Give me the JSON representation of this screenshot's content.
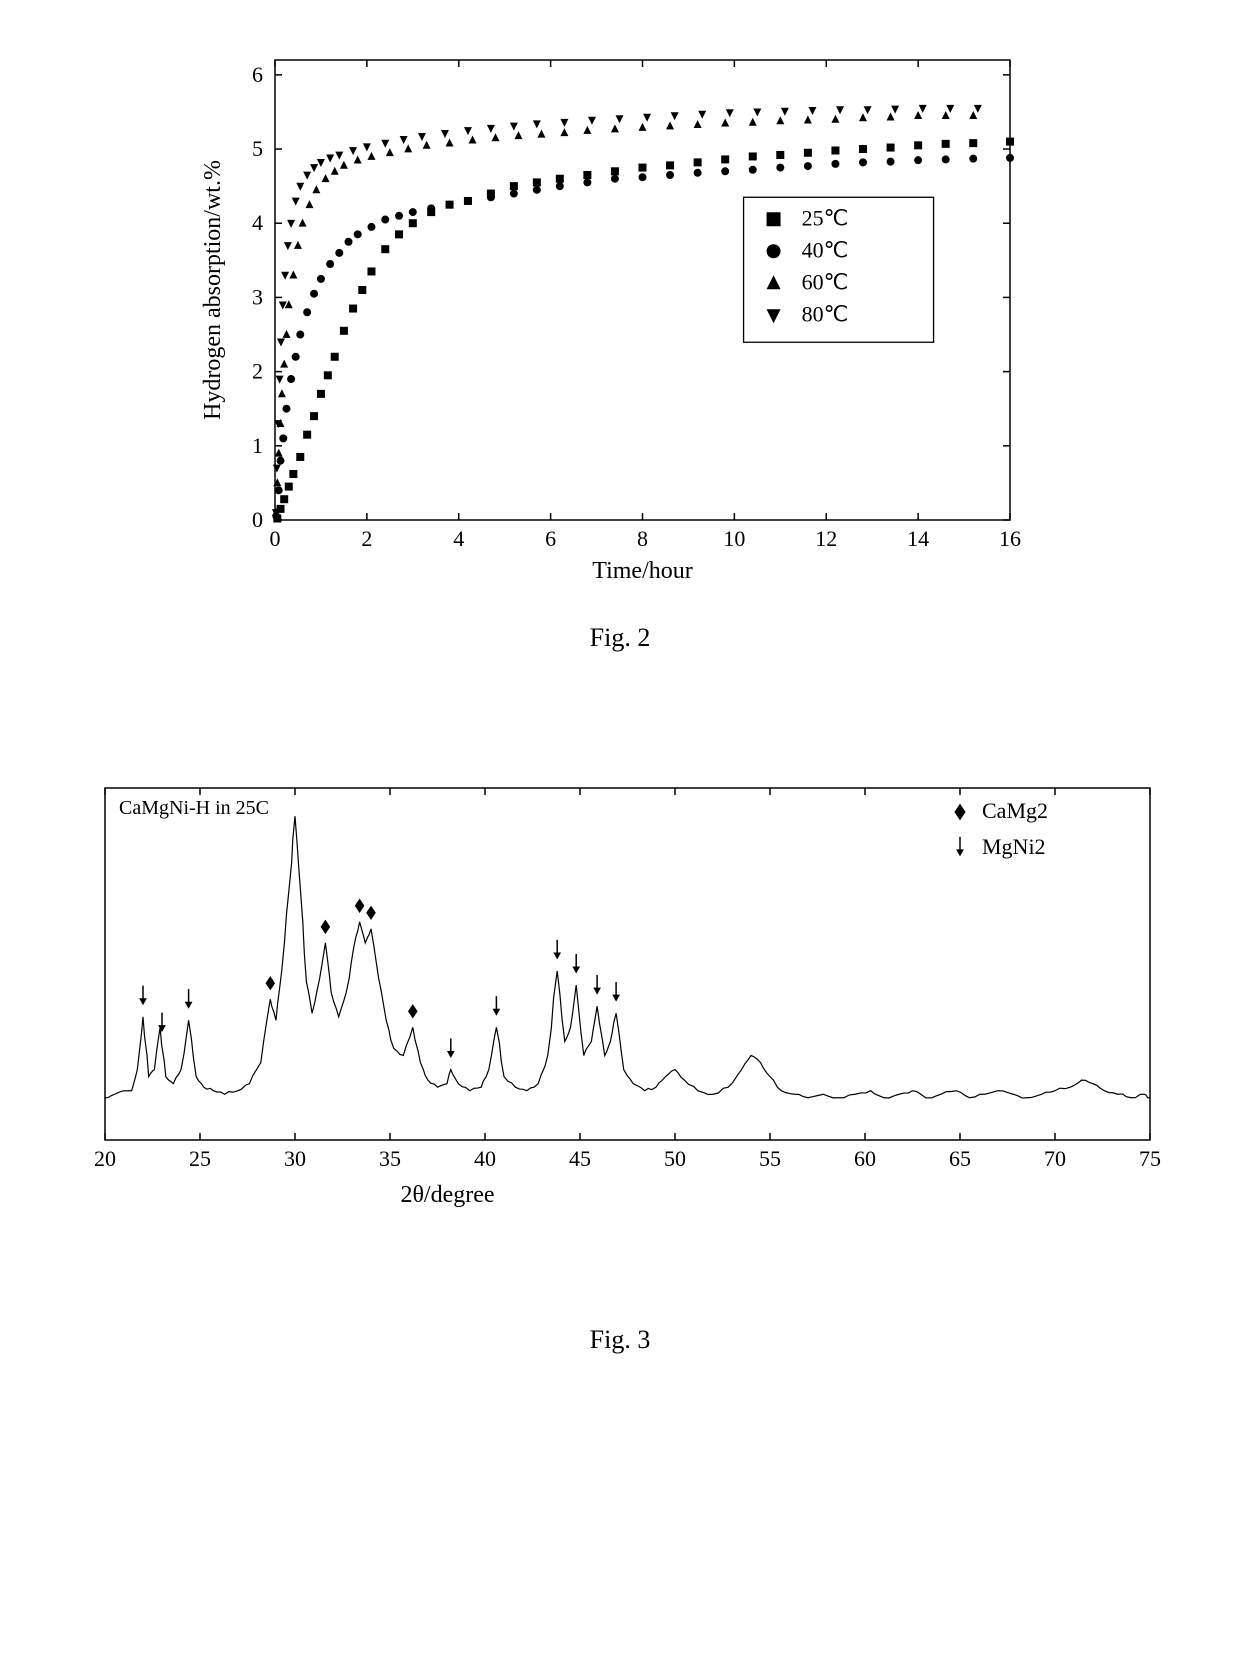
{
  "fig2": {
    "caption": "Fig. 2",
    "xlabel": "Time/hour",
    "ylabel": "Hydrogen absorption/wt.%",
    "xlim": [
      0,
      16
    ],
    "ylim": [
      0,
      6.2
    ],
    "xticks": [
      0,
      2,
      4,
      6,
      8,
      10,
      12,
      14,
      16
    ],
    "yticks": [
      0,
      1,
      2,
      3,
      4,
      5,
      6
    ],
    "line_color": "#000000",
    "background_color": "#ffffff",
    "axis_color": "#000000",
    "border_width": 1.5,
    "marker_size": 8,
    "tick_fontsize": 22,
    "label_fontsize": 24,
    "legend": {
      "border_color": "#000000",
      "bg_color": "#ffffff",
      "items": [
        {
          "marker": "square",
          "label": "25℃"
        },
        {
          "marker": "circle",
          "label": "40℃"
        },
        {
          "marker": "triangle-up",
          "label": "60℃"
        },
        {
          "marker": "triangle-down",
          "label": "80℃"
        }
      ]
    },
    "series": [
      {
        "name": "25C",
        "marker": "square",
        "points": [
          [
            0.05,
            0.02
          ],
          [
            0.12,
            0.15
          ],
          [
            0.2,
            0.28
          ],
          [
            0.3,
            0.45
          ],
          [
            0.4,
            0.62
          ],
          [
            0.55,
            0.85
          ],
          [
            0.7,
            1.15
          ],
          [
            0.85,
            1.4
          ],
          [
            1.0,
            1.7
          ],
          [
            1.15,
            1.95
          ],
          [
            1.3,
            2.2
          ],
          [
            1.5,
            2.55
          ],
          [
            1.7,
            2.85
          ],
          [
            1.9,
            3.1
          ],
          [
            2.1,
            3.35
          ],
          [
            2.4,
            3.65
          ],
          [
            2.7,
            3.85
          ],
          [
            3.0,
            4.0
          ],
          [
            3.4,
            4.15
          ],
          [
            3.8,
            4.25
          ],
          [
            4.2,
            4.3
          ],
          [
            4.7,
            4.4
          ],
          [
            5.2,
            4.5
          ],
          [
            5.7,
            4.55
          ],
          [
            6.2,
            4.6
          ],
          [
            6.8,
            4.65
          ],
          [
            7.4,
            4.7
          ],
          [
            8.0,
            4.75
          ],
          [
            8.6,
            4.78
          ],
          [
            9.2,
            4.82
          ],
          [
            9.8,
            4.86
          ],
          [
            10.4,
            4.9
          ],
          [
            11.0,
            4.92
          ],
          [
            11.6,
            4.95
          ],
          [
            12.2,
            4.98
          ],
          [
            12.8,
            5.0
          ],
          [
            13.4,
            5.02
          ],
          [
            14.0,
            5.05
          ],
          [
            14.6,
            5.07
          ],
          [
            15.2,
            5.08
          ],
          [
            16.0,
            5.1
          ]
        ]
      },
      {
        "name": "40C",
        "marker": "circle",
        "points": [
          [
            0.03,
            0.05
          ],
          [
            0.08,
            0.4
          ],
          [
            0.12,
            0.8
          ],
          [
            0.18,
            1.1
          ],
          [
            0.25,
            1.5
          ],
          [
            0.35,
            1.9
          ],
          [
            0.45,
            2.2
          ],
          [
            0.55,
            2.5
          ],
          [
            0.7,
            2.8
          ],
          [
            0.85,
            3.05
          ],
          [
            1.0,
            3.25
          ],
          [
            1.2,
            3.45
          ],
          [
            1.4,
            3.6
          ],
          [
            1.6,
            3.75
          ],
          [
            1.8,
            3.85
          ],
          [
            2.1,
            3.95
          ],
          [
            2.4,
            4.05
          ],
          [
            2.7,
            4.1
          ],
          [
            3.0,
            4.15
          ],
          [
            3.4,
            4.2
          ],
          [
            3.8,
            4.25
          ],
          [
            4.2,
            4.3
          ],
          [
            4.7,
            4.35
          ],
          [
            5.2,
            4.4
          ],
          [
            5.7,
            4.45
          ],
          [
            6.2,
            4.5
          ],
          [
            6.8,
            4.55
          ],
          [
            7.4,
            4.6
          ],
          [
            8.0,
            4.62
          ],
          [
            8.6,
            4.65
          ],
          [
            9.2,
            4.68
          ],
          [
            9.8,
            4.7
          ],
          [
            10.4,
            4.72
          ],
          [
            11.0,
            4.75
          ],
          [
            11.6,
            4.77
          ],
          [
            12.2,
            4.8
          ],
          [
            12.8,
            4.82
          ],
          [
            13.4,
            4.83
          ],
          [
            14.0,
            4.85
          ],
          [
            14.6,
            4.86
          ],
          [
            15.2,
            4.87
          ],
          [
            16.0,
            4.88
          ]
        ]
      },
      {
        "name": "60C",
        "marker": "triangle-up",
        "points": [
          [
            0.02,
            0.1
          ],
          [
            0.05,
            0.5
          ],
          [
            0.08,
            0.9
          ],
          [
            0.12,
            1.3
          ],
          [
            0.15,
            1.7
          ],
          [
            0.2,
            2.1
          ],
          [
            0.25,
            2.5
          ],
          [
            0.3,
            2.9
          ],
          [
            0.4,
            3.3
          ],
          [
            0.5,
            3.7
          ],
          [
            0.6,
            4.0
          ],
          [
            0.75,
            4.25
          ],
          [
            0.9,
            4.45
          ],
          [
            1.1,
            4.6
          ],
          [
            1.3,
            4.7
          ],
          [
            1.5,
            4.78
          ],
          [
            1.8,
            4.85
          ],
          [
            2.1,
            4.9
          ],
          [
            2.5,
            4.95
          ],
          [
            2.9,
            5.0
          ],
          [
            3.3,
            5.05
          ],
          [
            3.8,
            5.08
          ],
          [
            4.3,
            5.12
          ],
          [
            4.8,
            5.15
          ],
          [
            5.3,
            5.18
          ],
          [
            5.8,
            5.2
          ],
          [
            6.3,
            5.22
          ],
          [
            6.8,
            5.25
          ],
          [
            7.4,
            5.27
          ],
          [
            8.0,
            5.29
          ],
          [
            8.6,
            5.31
          ],
          [
            9.2,
            5.33
          ],
          [
            9.8,
            5.35
          ],
          [
            10.4,
            5.36
          ],
          [
            11.0,
            5.38
          ],
          [
            11.6,
            5.39
          ],
          [
            12.2,
            5.4
          ],
          [
            12.8,
            5.42
          ],
          [
            13.4,
            5.43
          ],
          [
            14.0,
            5.45
          ],
          [
            14.6,
            5.45
          ],
          [
            15.2,
            5.45
          ]
        ]
      },
      {
        "name": "80C",
        "marker": "triangle-down",
        "points": [
          [
            0.02,
            0.1
          ],
          [
            0.04,
            0.7
          ],
          [
            0.07,
            1.3
          ],
          [
            0.1,
            1.9
          ],
          [
            0.13,
            2.4
          ],
          [
            0.17,
            2.9
          ],
          [
            0.22,
            3.3
          ],
          [
            0.28,
            3.7
          ],
          [
            0.35,
            4.0
          ],
          [
            0.45,
            4.3
          ],
          [
            0.55,
            4.5
          ],
          [
            0.7,
            4.65
          ],
          [
            0.85,
            4.75
          ],
          [
            1.0,
            4.82
          ],
          [
            1.2,
            4.88
          ],
          [
            1.4,
            4.92
          ],
          [
            1.7,
            4.98
          ],
          [
            2.0,
            5.03
          ],
          [
            2.4,
            5.08
          ],
          [
            2.8,
            5.13
          ],
          [
            3.2,
            5.17
          ],
          [
            3.7,
            5.21
          ],
          [
            4.2,
            5.25
          ],
          [
            4.7,
            5.28
          ],
          [
            5.2,
            5.31
          ],
          [
            5.7,
            5.34
          ],
          [
            6.3,
            5.36
          ],
          [
            6.9,
            5.39
          ],
          [
            7.5,
            5.41
          ],
          [
            8.1,
            5.43
          ],
          [
            8.7,
            5.45
          ],
          [
            9.3,
            5.47
          ],
          [
            9.9,
            5.49
          ],
          [
            10.5,
            5.5
          ],
          [
            11.1,
            5.51
          ],
          [
            11.7,
            5.52
          ],
          [
            12.3,
            5.53
          ],
          [
            12.9,
            5.53
          ],
          [
            13.5,
            5.54
          ],
          [
            14.1,
            5.55
          ],
          [
            14.7,
            5.55
          ],
          [
            15.3,
            5.55
          ]
        ]
      }
    ]
  },
  "fig3": {
    "caption": "Fig. 3",
    "sample_label": "CaMgNi-H in 25C",
    "xlabel": "2θ/degree",
    "xlim": [
      20,
      75
    ],
    "ylim": [
      0,
      100
    ],
    "xticks": [
      20,
      25,
      30,
      35,
      40,
      45,
      50,
      55,
      60,
      65,
      70,
      75
    ],
    "line_color": "#000000",
    "background_color": "#ffffff",
    "axis_color": "#000000",
    "border_width": 1.5,
    "tick_fontsize": 20,
    "label_fontsize": 24,
    "legend": {
      "items": [
        {
          "marker": "diamond",
          "label": "CaMg2"
        },
        {
          "marker": "down-arrow",
          "label": "MgNi2"
        }
      ]
    },
    "diamonds_x": [
      28.7,
      31.6,
      33.4,
      34.0,
      36.2
    ],
    "arrows_x": [
      22.0,
      23.0,
      24.4,
      38.2,
      40.6,
      43.8,
      44.8,
      45.9,
      46.9
    ],
    "spectrum_points": [
      [
        20,
        12
      ],
      [
        20.5,
        13
      ],
      [
        21,
        14
      ],
      [
        21.4,
        14
      ],
      [
        21.7,
        20
      ],
      [
        22.0,
        35
      ],
      [
        22.3,
        18
      ],
      [
        22.6,
        20
      ],
      [
        22.9,
        32
      ],
      [
        23.2,
        18
      ],
      [
        23.6,
        16
      ],
      [
        24.0,
        20
      ],
      [
        24.4,
        34
      ],
      [
        24.8,
        18
      ],
      [
        25.2,
        15
      ],
      [
        25.7,
        14
      ],
      [
        26.3,
        13
      ],
      [
        27.0,
        14
      ],
      [
        27.6,
        16
      ],
      [
        28.2,
        22
      ],
      [
        28.7,
        40
      ],
      [
        29.0,
        34
      ],
      [
        29.3,
        48
      ],
      [
        29.7,
        72
      ],
      [
        30.0,
        92
      ],
      [
        30.3,
        70
      ],
      [
        30.6,
        45
      ],
      [
        30.9,
        36
      ],
      [
        31.3,
        46
      ],
      [
        31.6,
        56
      ],
      [
        31.9,
        42
      ],
      [
        32.3,
        35
      ],
      [
        32.7,
        42
      ],
      [
        33.1,
        55
      ],
      [
        33.4,
        62
      ],
      [
        33.7,
        56
      ],
      [
        34.0,
        60
      ],
      [
        34.4,
        46
      ],
      [
        34.8,
        34
      ],
      [
        35.2,
        26
      ],
      [
        35.7,
        24
      ],
      [
        36.2,
        32
      ],
      [
        36.6,
        22
      ],
      [
        37.0,
        17
      ],
      [
        37.5,
        15
      ],
      [
        38.0,
        16
      ],
      [
        38.2,
        20
      ],
      [
        38.6,
        16
      ],
      [
        39.2,
        14
      ],
      [
        39.8,
        15
      ],
      [
        40.2,
        20
      ],
      [
        40.6,
        32
      ],
      [
        41.0,
        18
      ],
      [
        41.6,
        15
      ],
      [
        42.2,
        14
      ],
      [
        42.8,
        16
      ],
      [
        43.3,
        24
      ],
      [
        43.8,
        48
      ],
      [
        44.2,
        28
      ],
      [
        44.5,
        32
      ],
      [
        44.8,
        44
      ],
      [
        45.2,
        24
      ],
      [
        45.6,
        28
      ],
      [
        45.9,
        38
      ],
      [
        46.3,
        24
      ],
      [
        46.6,
        28
      ],
      [
        46.9,
        36
      ],
      [
        47.3,
        20
      ],
      [
        47.8,
        16
      ],
      [
        48.4,
        14
      ],
      [
        49.0,
        15
      ],
      [
        49.5,
        18
      ],
      [
        50.0,
        20
      ],
      [
        50.5,
        17
      ],
      [
        51.2,
        14
      ],
      [
        52.0,
        13
      ],
      [
        52.8,
        15
      ],
      [
        53.5,
        20
      ],
      [
        54.0,
        24
      ],
      [
        54.5,
        22
      ],
      [
        55.0,
        18
      ],
      [
        55.6,
        14
      ],
      [
        56.3,
        13
      ],
      [
        57.0,
        12
      ],
      [
        57.8,
        13
      ],
      [
        58.6,
        12
      ],
      [
        59.5,
        13
      ],
      [
        60.3,
        14
      ],
      [
        61.0,
        12
      ],
      [
        61.8,
        13
      ],
      [
        62.5,
        14
      ],
      [
        63.2,
        12
      ],
      [
        64.0,
        13
      ],
      [
        64.8,
        14
      ],
      [
        65.5,
        12
      ],
      [
        66.3,
        13
      ],
      [
        67.0,
        14
      ],
      [
        67.8,
        13
      ],
      [
        68.5,
        12
      ],
      [
        69.3,
        13
      ],
      [
        70.0,
        14
      ],
      [
        70.8,
        15
      ],
      [
        71.4,
        17
      ],
      [
        72.0,
        16
      ],
      [
        72.6,
        14
      ],
      [
        73.3,
        13
      ],
      [
        74.0,
        12
      ],
      [
        74.7,
        13
      ],
      [
        75.0,
        12
      ]
    ]
  }
}
